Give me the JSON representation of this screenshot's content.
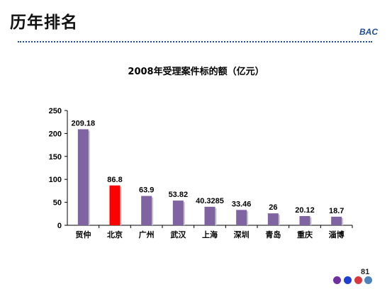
{
  "slide": {
    "title": "历年排名",
    "brand": "BAC",
    "page_number": "81"
  },
  "colors": {
    "bar_default": "#8064a2",
    "bar_highlight": "#ff0000",
    "divider": "#1f4e99",
    "dots": [
      "#7030a0",
      "#1f3fd0",
      "#d9363e",
      "#4f81bd"
    ]
  },
  "chart_data": {
    "type": "bar",
    "title": "2008年受理案件标的额（亿元）",
    "xlabel": "",
    "ylabel": "",
    "categories": [
      "贸仲",
      "北京",
      "广州",
      "武汉",
      "上海",
      "深圳",
      "青岛",
      "重庆",
      "淄博"
    ],
    "values": [
      209.18,
      86.8,
      63.9,
      53.82,
      40.3285,
      33.46,
      26,
      20.12,
      18.7
    ],
    "data_labels": [
      "209.18",
      "86.8",
      "63.9",
      "53.82",
      "40.3285",
      "33.46",
      "26",
      "20.12",
      "18.7"
    ],
    "highlight_category": "北京",
    "ylim": [
      0,
      250
    ],
    "yticks": [
      0,
      50,
      100,
      150,
      200,
      250
    ],
    "grid": false,
    "legend": "none"
  }
}
